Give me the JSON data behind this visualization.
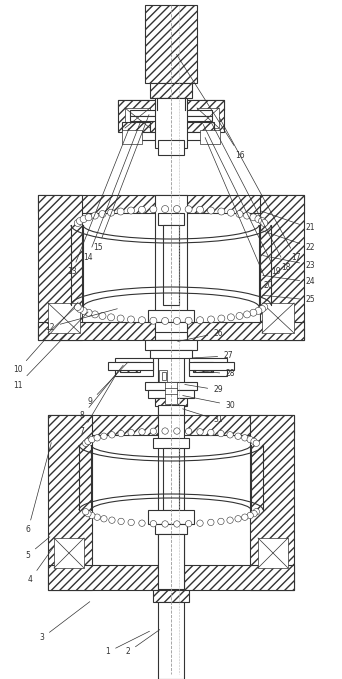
{
  "bg_color": "#ffffff",
  "line_color": "#333333",
  "fig_width": 3.42,
  "fig_height": 6.79,
  "dpi": 100
}
